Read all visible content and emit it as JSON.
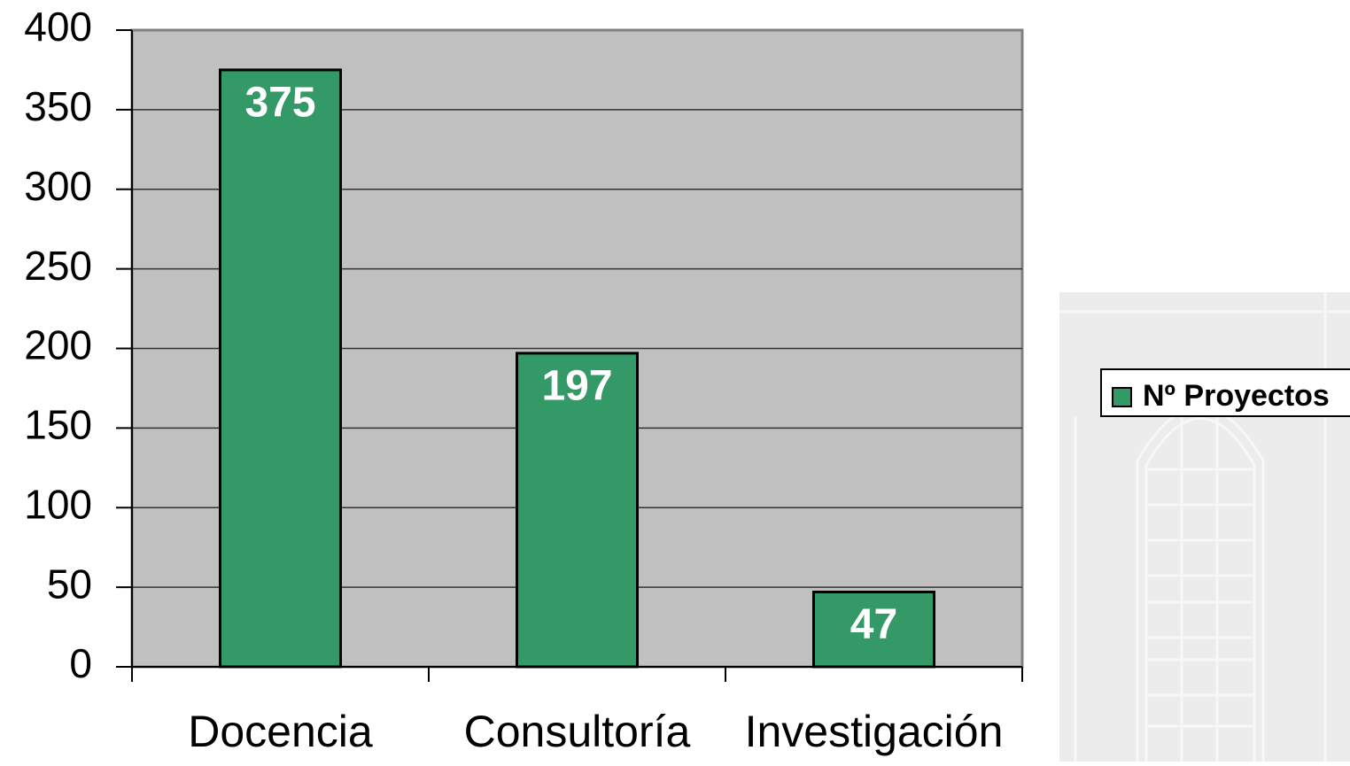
{
  "chart_data": {
    "type": "bar",
    "categories": [
      "Docencia",
      "Consultoría",
      "Investigación"
    ],
    "series": [
      {
        "name": "Nº Proyectos",
        "color": "#339966",
        "values": [
          375,
          197,
          47
        ]
      }
    ],
    "ylim": [
      0,
      400
    ],
    "yticks": [
      0,
      50,
      100,
      150,
      200,
      250,
      300,
      350,
      400
    ],
    "grid": true,
    "legend": "right"
  }
}
